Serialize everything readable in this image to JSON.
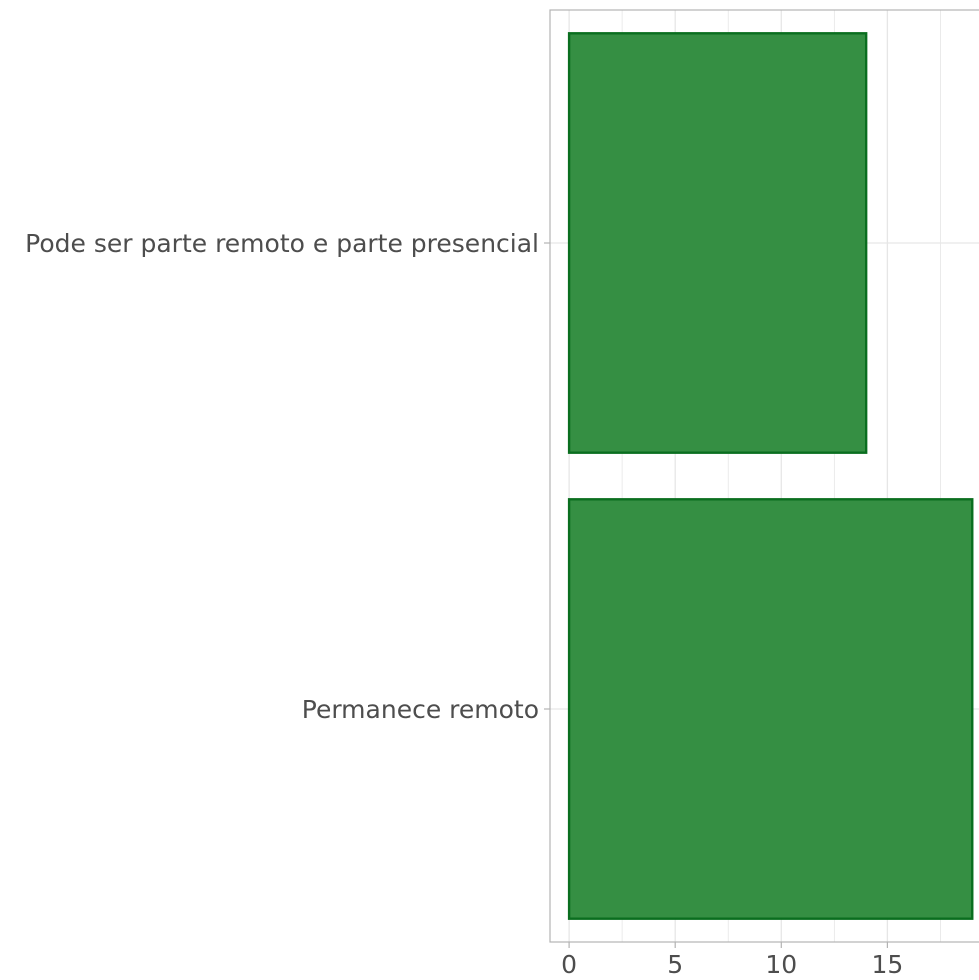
{
  "chart_data": {
    "type": "bar",
    "orientation": "horizontal",
    "categories": [
      "Pode ser parte remoto e parte presencial",
      "Permanece remoto"
    ],
    "values": [
      14,
      19
    ],
    "title": "",
    "xlabel": "",
    "ylabel": "",
    "xlim": [
      -0.9,
      19.6
    ],
    "xticks": [
      0,
      5,
      10,
      15
    ],
    "grid": true,
    "legend": "none",
    "colors": {
      "bar_fill": "#2e8b3d",
      "bar_stroke": "#0a6e1f",
      "grid": "#e6e6e6",
      "panel_border": "#b3b3b3",
      "text": "#4d4d4d"
    }
  }
}
